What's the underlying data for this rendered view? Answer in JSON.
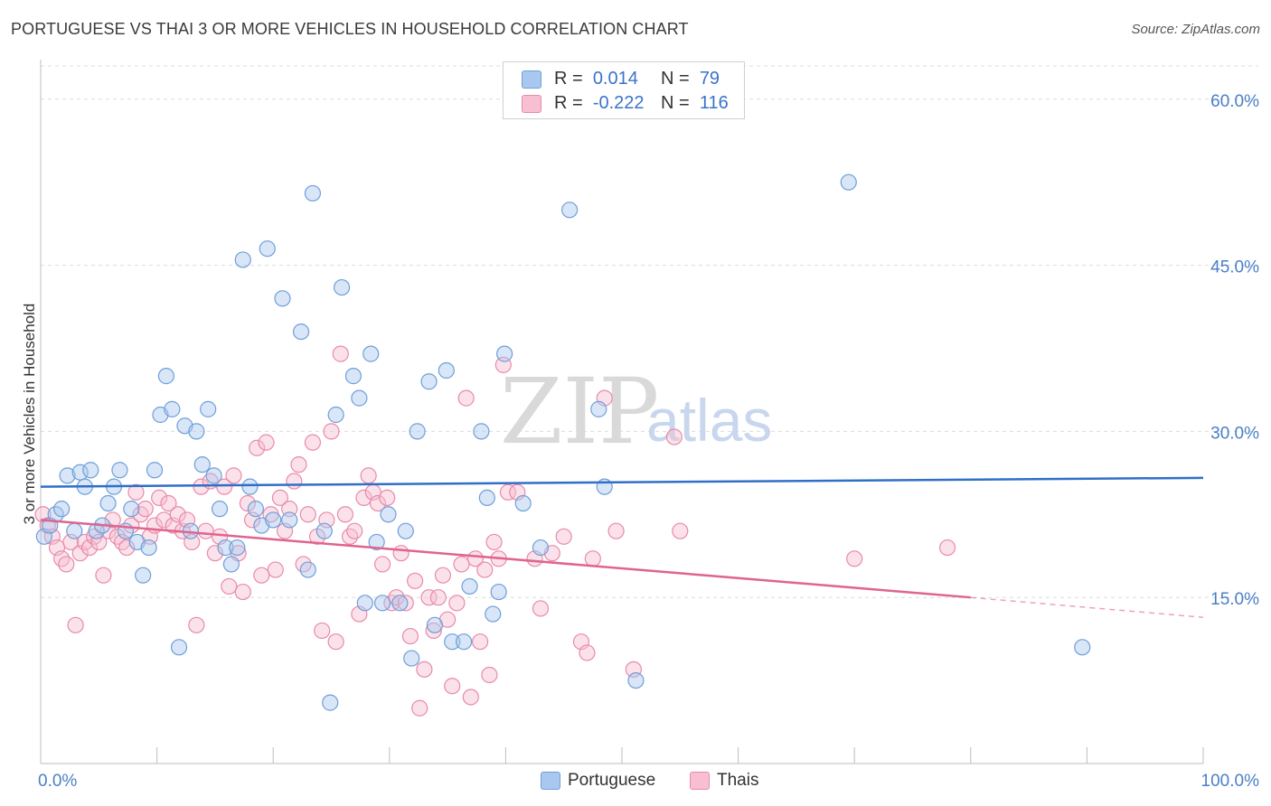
{
  "title": "PORTUGUESE VS THAI 3 OR MORE VEHICLES IN HOUSEHOLD CORRELATION CHART",
  "source": "Source: ZipAtlas.com",
  "watermark": {
    "zip": "ZIP",
    "atlas": "atlas"
  },
  "legend": {
    "portuguese": {
      "r_label": "R =",
      "r_value": "0.014",
      "n_label": "N =",
      "n_value": "79",
      "color": "#a9c8ef",
      "border": "#6f9fd8"
    },
    "thais": {
      "r_label": "R =",
      "r_value": "-0.222",
      "n_label": "N =",
      "n_value": "116",
      "color": "#f7bfd1",
      "border": "#e98aaa"
    }
  },
  "bottom_legend": {
    "portuguese": "Portuguese",
    "thais": "Thais"
  },
  "chart_data": {
    "type": "scatter",
    "title": "PORTUGUESE VS THAI 3 OR MORE VEHICLES IN HOUSEHOLD CORRELATION CHART",
    "xlabel": "",
    "ylabel": "3 or more Vehicles in Household",
    "xlim": [
      0,
      100
    ],
    "ylim": [
      0,
      63
    ],
    "x_tick_labels": [
      "0.0%",
      "100.0%"
    ],
    "y_ticks": [
      15,
      30,
      45,
      60
    ],
    "y_tick_labels": [
      "15.0%",
      "30.0%",
      "45.0%",
      "60.0%"
    ],
    "grid": true,
    "legend_position": "top-center",
    "series": [
      {
        "name": "Portuguese",
        "color": "#a9c8ef",
        "edge": "#6f9fd8",
        "trend": {
          "x": [
            0,
            100
          ],
          "y": [
            25.0,
            25.8
          ],
          "color": "#2f6fc8"
        },
        "points": [
          [
            0.3,
            20.5
          ],
          [
            0.8,
            21.5
          ],
          [
            1.3,
            22.5
          ],
          [
            1.8,
            23.0
          ],
          [
            2.3,
            26.0
          ],
          [
            2.9,
            21.0
          ],
          [
            3.4,
            26.3
          ],
          [
            3.8,
            25.0
          ],
          [
            4.3,
            26.5
          ],
          [
            4.8,
            21.0
          ],
          [
            5.3,
            21.5
          ],
          [
            5.8,
            23.5
          ],
          [
            6.3,
            25.0
          ],
          [
            6.8,
            26.5
          ],
          [
            7.3,
            21.0
          ],
          [
            7.8,
            23.0
          ],
          [
            8.3,
            20.0
          ],
          [
            8.8,
            17.0
          ],
          [
            9.3,
            19.5
          ],
          [
            9.8,
            26.5
          ],
          [
            10.3,
            31.5
          ],
          [
            10.8,
            35.0
          ],
          [
            11.3,
            32.0
          ],
          [
            11.9,
            10.5
          ],
          [
            12.4,
            30.5
          ],
          [
            12.9,
            21.0
          ],
          [
            13.4,
            30.0
          ],
          [
            13.9,
            27.0
          ],
          [
            14.4,
            32.0
          ],
          [
            14.9,
            26.0
          ],
          [
            15.4,
            23.0
          ],
          [
            15.9,
            19.5
          ],
          [
            16.4,
            18.0
          ],
          [
            16.9,
            19.5
          ],
          [
            17.4,
            45.5
          ],
          [
            18.0,
            25.0
          ],
          [
            18.5,
            23.0
          ],
          [
            19.0,
            21.5
          ],
          [
            19.5,
            46.5
          ],
          [
            20.0,
            22.0
          ],
          [
            20.8,
            42.0
          ],
          [
            21.4,
            22.0
          ],
          [
            22.4,
            39.0
          ],
          [
            23.0,
            17.5
          ],
          [
            23.4,
            51.5
          ],
          [
            24.4,
            21.0
          ],
          [
            24.9,
            5.5
          ],
          [
            25.4,
            31.5
          ],
          [
            25.9,
            43.0
          ],
          [
            26.9,
            35.0
          ],
          [
            27.4,
            33.0
          ],
          [
            27.9,
            14.5
          ],
          [
            28.4,
            37.0
          ],
          [
            28.9,
            20.0
          ],
          [
            29.4,
            14.5
          ],
          [
            29.9,
            22.5
          ],
          [
            30.9,
            14.5
          ],
          [
            31.4,
            21.0
          ],
          [
            31.9,
            9.5
          ],
          [
            32.4,
            30.0
          ],
          [
            33.4,
            34.5
          ],
          [
            33.9,
            12.5
          ],
          [
            34.9,
            35.5
          ],
          [
            35.4,
            11.0
          ],
          [
            36.4,
            11.0
          ],
          [
            36.9,
            16.0
          ],
          [
            37.9,
            30.0
          ],
          [
            38.4,
            24.0
          ],
          [
            38.9,
            13.5
          ],
          [
            39.4,
            15.5
          ],
          [
            39.9,
            37.0
          ],
          [
            41.5,
            23.5
          ],
          [
            43.0,
            19.5
          ],
          [
            45.5,
            50.0
          ],
          [
            48.0,
            32.0
          ],
          [
            48.5,
            25.0
          ],
          [
            51.2,
            7.5
          ],
          [
            69.5,
            52.5
          ],
          [
            89.6,
            10.5
          ]
        ]
      },
      {
        "name": "Thais",
        "color": "#f7bfd1",
        "edge": "#e98aaa",
        "trend": {
          "x": [
            0,
            80,
            100
          ],
          "y": [
            22.0,
            15.0,
            13.2
          ],
          "color": "#e0648e"
        },
        "points": [
          [
            0.2,
            22.5
          ],
          [
            0.6,
            21.5
          ],
          [
            1.0,
            20.5
          ],
          [
            1.4,
            19.5
          ],
          [
            1.8,
            18.5
          ],
          [
            2.2,
            18.0
          ],
          [
            2.6,
            20.0
          ],
          [
            3.0,
            12.5
          ],
          [
            3.4,
            19.0
          ],
          [
            3.8,
            20.0
          ],
          [
            4.2,
            19.5
          ],
          [
            4.6,
            20.5
          ],
          [
            5.0,
            20.0
          ],
          [
            5.4,
            17.0
          ],
          [
            5.8,
            21.0
          ],
          [
            6.2,
            22.0
          ],
          [
            6.6,
            20.5
          ],
          [
            7.0,
            20.0
          ],
          [
            7.4,
            19.5
          ],
          [
            7.8,
            21.5
          ],
          [
            8.2,
            24.5
          ],
          [
            8.6,
            22.5
          ],
          [
            9.0,
            23.0
          ],
          [
            9.4,
            20.5
          ],
          [
            9.8,
            21.5
          ],
          [
            10.2,
            24.0
          ],
          [
            10.6,
            22.0
          ],
          [
            11.0,
            23.5
          ],
          [
            11.4,
            21.5
          ],
          [
            11.8,
            22.5
          ],
          [
            12.2,
            21.0
          ],
          [
            12.6,
            22.0
          ],
          [
            13.0,
            20.0
          ],
          [
            13.4,
            12.5
          ],
          [
            13.8,
            25.0
          ],
          [
            14.2,
            21.0
          ],
          [
            14.6,
            25.5
          ],
          [
            15.0,
            19.0
          ],
          [
            15.4,
            20.5
          ],
          [
            15.8,
            25.0
          ],
          [
            16.2,
            16.0
          ],
          [
            16.6,
            26.0
          ],
          [
            17.0,
            19.0
          ],
          [
            17.4,
            15.5
          ],
          [
            17.8,
            23.5
          ],
          [
            18.2,
            22.0
          ],
          [
            18.6,
            28.5
          ],
          [
            19.0,
            17.0
          ],
          [
            19.4,
            29.0
          ],
          [
            19.8,
            22.5
          ],
          [
            20.2,
            17.5
          ],
          [
            20.6,
            24.0
          ],
          [
            21.0,
            21.0
          ],
          [
            21.4,
            23.0
          ],
          [
            21.8,
            25.5
          ],
          [
            22.2,
            27.0
          ],
          [
            22.6,
            18.0
          ],
          [
            23.0,
            22.5
          ],
          [
            23.4,
            29.0
          ],
          [
            23.8,
            20.5
          ],
          [
            24.2,
            12.0
          ],
          [
            24.6,
            22.0
          ],
          [
            25.0,
            30.0
          ],
          [
            25.4,
            11.0
          ],
          [
            25.8,
            37.0
          ],
          [
            26.2,
            22.5
          ],
          [
            26.6,
            20.5
          ],
          [
            27.0,
            21.0
          ],
          [
            27.4,
            13.5
          ],
          [
            27.8,
            24.0
          ],
          [
            28.2,
            26.0
          ],
          [
            28.6,
            24.5
          ],
          [
            29.0,
            23.5
          ],
          [
            29.4,
            18.0
          ],
          [
            29.8,
            24.0
          ],
          [
            30.2,
            14.5
          ],
          [
            30.6,
            15.0
          ],
          [
            31.0,
            19.0
          ],
          [
            31.4,
            14.5
          ],
          [
            31.8,
            11.5
          ],
          [
            32.2,
            16.5
          ],
          [
            32.6,
            5.0
          ],
          [
            33.0,
            8.5
          ],
          [
            33.4,
            15.0
          ],
          [
            33.8,
            12.0
          ],
          [
            34.2,
            15.0
          ],
          [
            34.6,
            17.0
          ],
          [
            35.0,
            13.0
          ],
          [
            35.4,
            7.0
          ],
          [
            35.8,
            14.5
          ],
          [
            36.2,
            18.0
          ],
          [
            36.6,
            33.0
          ],
          [
            37.0,
            6.0
          ],
          [
            37.4,
            18.5
          ],
          [
            37.8,
            11.0
          ],
          [
            38.2,
            17.5
          ],
          [
            38.6,
            8.0
          ],
          [
            39.0,
            20.0
          ],
          [
            39.4,
            18.5
          ],
          [
            39.8,
            36.0
          ],
          [
            40.2,
            24.5
          ],
          [
            41.0,
            24.5
          ],
          [
            42.5,
            18.5
          ],
          [
            43.0,
            14.0
          ],
          [
            44.0,
            19.0
          ],
          [
            45.0,
            20.5
          ],
          [
            46.5,
            11.0
          ],
          [
            47.0,
            10.0
          ],
          [
            47.5,
            18.5
          ],
          [
            48.5,
            33.0
          ],
          [
            49.5,
            21.0
          ],
          [
            51.0,
            8.5
          ],
          [
            54.5,
            29.5
          ],
          [
            55.0,
            21.0
          ],
          [
            70.0,
            18.5
          ],
          [
            78.0,
            19.5
          ]
        ]
      }
    ]
  }
}
